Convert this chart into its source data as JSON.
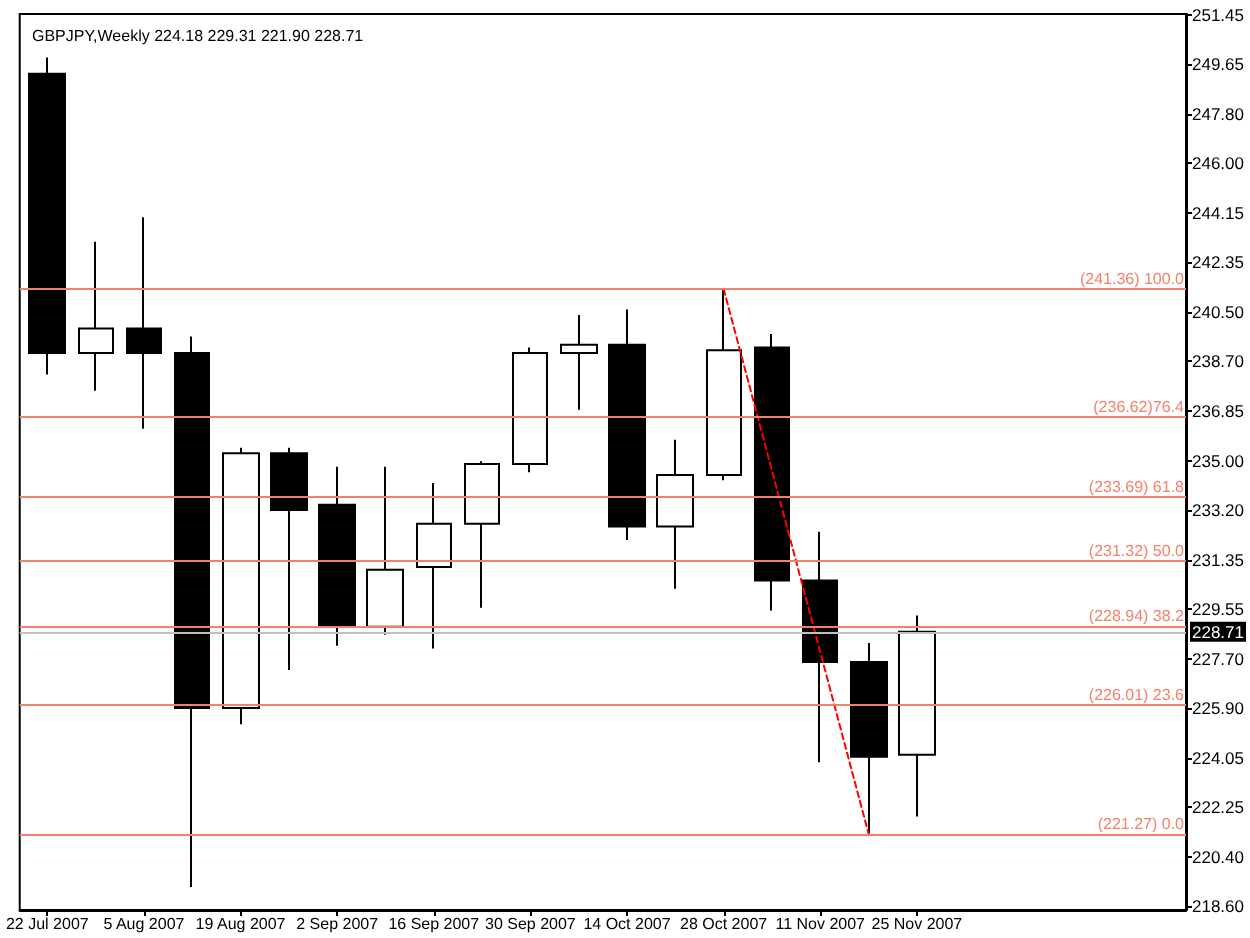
{
  "chart_data": {
    "type": "candlestick",
    "title": "GBPJPY,Weekly 224.18 229.31 221.90 228.71",
    "series": [
      {
        "type": "candlestick",
        "color": "#000000",
        "colors": [
          "#000000",
          "#ffffff",
          "#000000",
          "#000000",
          "#ffffff",
          "#000000",
          "#000000",
          "#ffffff",
          "#ffffff",
          "#ffffff",
          "#ffffff",
          "#ffffff",
          "#000000",
          "#ffffff",
          "#ffffff",
          "#000000",
          "#000000",
          "#000000",
          "#ffffff"
        ],
        "x": [
          "2007-07-22",
          "2007-07-29",
          "2007-08-05",
          "2007-08-12",
          "2007-08-19",
          "2007-08-26",
          "2007-09-02",
          "2007-09-09",
          "2007-09-16",
          "2007-09-23",
          "2007-09-30",
          "2007-10-07",
          "2007-10-14",
          "2007-10-21",
          "2007-10-28",
          "2007-11-04",
          "2007-11-11",
          "2007-11-18",
          "2007-11-25"
        ],
        "ohlc": [
          [
            249.3,
            249.9,
            238.2,
            239.0
          ],
          [
            239.0,
            243.1,
            237.6,
            239.9
          ],
          [
            239.9,
            244.0,
            236.2,
            239.0
          ],
          [
            239.0,
            239.6,
            219.3,
            225.9
          ],
          [
            225.9,
            235.5,
            225.3,
            235.3
          ],
          [
            235.3,
            235.5,
            227.3,
            233.2
          ],
          [
            233.4,
            234.8,
            228.2,
            228.9
          ],
          [
            228.9,
            234.8,
            228.6,
            231.0
          ],
          [
            231.1,
            234.2,
            228.1,
            232.7
          ],
          [
            232.7,
            235.0,
            229.6,
            234.9
          ],
          [
            234.9,
            239.2,
            234.6,
            239.0
          ],
          [
            239.0,
            240.4,
            236.9,
            239.3
          ],
          [
            239.3,
            240.6,
            232.1,
            232.6
          ],
          [
            232.6,
            235.8,
            230.3,
            234.5
          ],
          [
            234.5,
            241.36,
            234.3,
            239.1
          ],
          [
            239.2,
            239.7,
            229.5,
            230.6
          ],
          [
            230.6,
            232.4,
            223.9,
            227.6
          ],
          [
            227.6,
            228.3,
            221.27,
            224.1
          ],
          [
            224.18,
            229.31,
            221.9,
            228.71
          ]
        ]
      },
      {
        "type": "line",
        "color": "#ff0000",
        "line_style": "dashed",
        "marker": "none",
        "x": [
          "2007-10-28",
          "2007-11-18"
        ],
        "values": [
          241.36,
          221.27
        ]
      }
    ],
    "xlim": [
      "2007-07-18",
      "2008-01-03"
    ],
    "xticks": [
      {
        "value": "2007-07-22",
        "label": "22 Jul 2007"
      },
      {
        "value": "2007-08-05",
        "label": "5 Aug 2007"
      },
      {
        "value": "2007-08-19",
        "label": "19 Aug 2007"
      },
      {
        "value": "2007-09-02",
        "label": "2 Sep 2007"
      },
      {
        "value": "2007-09-16",
        "label": "16 Sep 2007"
      },
      {
        "value": "2007-09-30",
        "label": "30 Sep 2007"
      },
      {
        "value": "2007-10-14",
        "label": "14 Oct 2007"
      },
      {
        "value": "2007-10-28",
        "label": "28 Oct 2007"
      },
      {
        "value": "2007-11-11",
        "label": "11 Nov 2007"
      },
      {
        "value": "2007-11-25",
        "label": "25 Nov 2007"
      }
    ],
    "ylim": [
      218.45,
      251.5
    ],
    "yticks": [
      {
        "value": 218.6,
        "label": "218.60"
      },
      {
        "value": 220.4,
        "label": "220.40"
      },
      222.25,
      224.05,
      {
        "value": 225.9,
        "label": "225.90"
      },
      {
        "value": 227.7,
        "label": "227.70"
      },
      229.55,
      231.35,
      {
        "value": 233.2,
        "label": "233.20"
      },
      {
        "value": 235,
        "label": "235.00"
      },
      236.85,
      {
        "value": 238.7,
        "label": "238.70"
      },
      {
        "value": 240.5,
        "label": "240.50"
      },
      242.35,
      244.15,
      {
        "value": 246,
        "label": "246.00"
      },
      {
        "value": 247.8,
        "label": "247.80"
      },
      249.65,
      251.45
    ],
    "ref_lines": [
      {
        "axis": "y",
        "value": 241.36,
        "label": "(241.36) 100.0",
        "color": "#f4806c"
      },
      {
        "axis": "y",
        "value": 236.62,
        "label": "(236.62)76.4",
        "color": "#f4806c"
      },
      {
        "axis": "y",
        "value": 233.69,
        "label": "(233.69) 61.8",
        "color": "#f4806c"
      },
      {
        "axis": "y",
        "value": 231.32,
        "label": "(231.32) 50.0",
        "color": "#f4806c"
      },
      {
        "axis": "y",
        "value": 228.94,
        "label": "(228.94) 38.2",
        "color": "#f4806c"
      },
      {
        "axis": "y",
        "value": 226.01,
        "label": "(226.01) 23.6",
        "color": "#f4806c"
      },
      {
        "axis": "y",
        "value": 221.27,
        "label": "(221.27) 0.0",
        "color": "#f4806c"
      },
      {
        "axis": "y",
        "value": 228.71,
        "color": "#c0c0c0"
      }
    ],
    "annotations": [
      {
        "text": "228.71",
        "y": 228.71
      }
    ],
    "grid": false
  }
}
